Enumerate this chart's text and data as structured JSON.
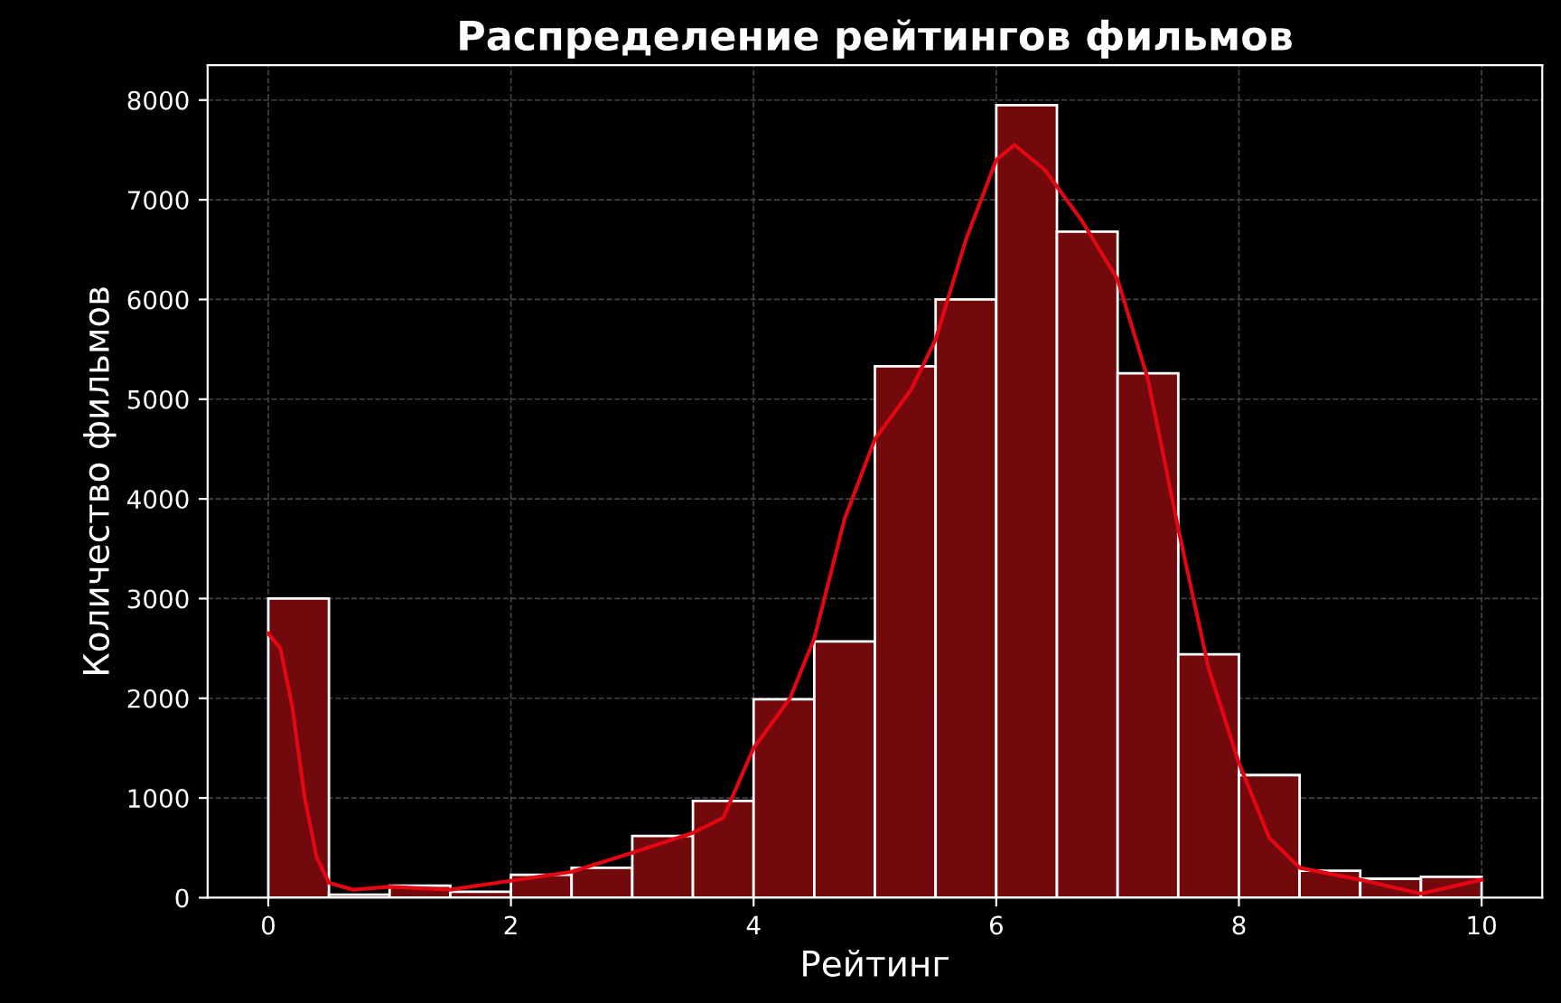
{
  "chart_data": {
    "type": "histogram",
    "title": "Распределение рейтингов фильмов",
    "xlabel": "Рейтинг",
    "ylabel": "Количество фильмов",
    "bins": [
      0,
      0.5,
      1,
      1.5,
      2,
      2.5,
      3,
      3.5,
      4,
      4.5,
      5,
      5.5,
      6,
      6.5,
      7,
      7.5,
      8,
      8.5,
      9,
      9.5,
      10
    ],
    "values": [
      3000,
      30,
      120,
      60,
      230,
      300,
      620,
      970,
      1990,
      2570,
      5330,
      6000,
      7950,
      6680,
      5260,
      2440,
      1230,
      270,
      190,
      210
    ],
    "color": "#720a0d",
    "series": [
      {
        "type": "line",
        "color": "#e30613",
        "x": [
          0,
          0.1,
          0.2,
          0.3,
          0.4,
          0.5,
          0.7,
          1,
          1.5,
          2,
          2.5,
          3,
          3.5,
          3.75,
          4,
          4.3,
          4.5,
          4.75,
          5,
          5.3,
          5.5,
          5.75,
          6,
          6.15,
          6.4,
          6.7,
          7,
          7.25,
          7.5,
          7.75,
          8,
          8.25,
          8.5,
          9,
          9.5,
          10
        ],
        "values": [
          2650,
          2500,
          1900,
          1000,
          400,
          150,
          80,
          110,
          80,
          170,
          260,
          450,
          650,
          800,
          1500,
          2000,
          2600,
          3800,
          4600,
          5100,
          5600,
          6600,
          7400,
          7550,
          7300,
          6800,
          6200,
          5200,
          3700,
          2300,
          1350,
          600,
          300,
          180,
          40,
          180
        ]
      }
    ],
    "xlim": [
      -0.5,
      10.5
    ],
    "ylim": [
      0,
      8350
    ],
    "xticks": [
      0,
      2,
      4,
      6,
      8,
      10
    ],
    "yticks": [
      0,
      1000,
      2000,
      3000,
      4000,
      5000,
      6000,
      7000,
      8000
    ],
    "grid": true,
    "line_style": "solid",
    "marker": "none"
  }
}
